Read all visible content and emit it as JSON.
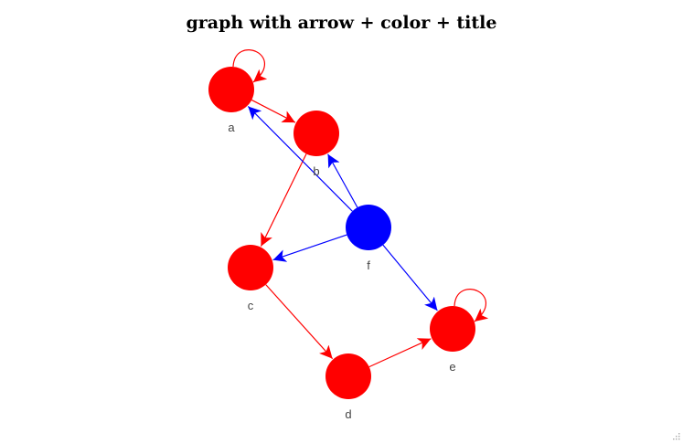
{
  "title": "graph with arrow + color + title",
  "graph": {
    "directed": true,
    "colors": {
      "red": "#ff0000",
      "blue": "#0000ff"
    },
    "nodes": [
      {
        "id": "a",
        "label": "a",
        "color": "#ff0000"
      },
      {
        "id": "b",
        "label": "b",
        "color": "#ff0000"
      },
      {
        "id": "c",
        "label": "c",
        "color": "#ff0000"
      },
      {
        "id": "d",
        "label": "d",
        "color": "#ff0000"
      },
      {
        "id": "e",
        "label": "e",
        "color": "#ff0000"
      },
      {
        "id": "f",
        "label": "f",
        "color": "#0000ff"
      }
    ],
    "edges": [
      {
        "source": "a",
        "target": "a",
        "color": "#ff0000"
      },
      {
        "source": "a",
        "target": "b",
        "color": "#ff0000"
      },
      {
        "source": "b",
        "target": "c",
        "color": "#ff0000"
      },
      {
        "source": "c",
        "target": "d",
        "color": "#ff0000"
      },
      {
        "source": "d",
        "target": "e",
        "color": "#ff0000"
      },
      {
        "source": "e",
        "target": "e",
        "color": "#ff0000"
      },
      {
        "source": "f",
        "target": "a",
        "color": "#0000ff"
      },
      {
        "source": "f",
        "target": "b",
        "color": "#0000ff"
      },
      {
        "source": "f",
        "target": "c",
        "color": "#0000ff"
      },
      {
        "source": "f",
        "target": "e",
        "color": "#0000ff"
      }
    ]
  }
}
